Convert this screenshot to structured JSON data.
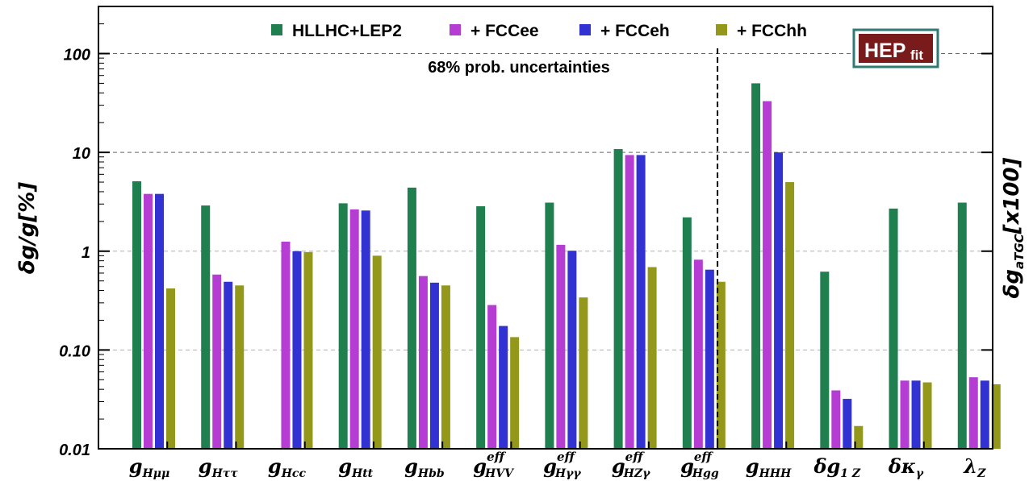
{
  "chart_data": {
    "type": "bar",
    "y_scale": "log",
    "ylim": [
      0.01,
      300
    ],
    "yticks": [
      "0.01",
      "0.10",
      "1",
      "10",
      "100"
    ],
    "ytick_values": [
      0.01,
      0.1,
      1,
      10,
      100
    ],
    "ylabel_left": "δg/g[%]",
    "ylabel_right": "δg",
    "ylabel_right_sub": "aTGC",
    "ylabel_right_suffix": "[x100]",
    "annotation": "68% prob. uncertainties",
    "grid": "horizontal dashed",
    "legend_position": "top",
    "logo": {
      "main": "HEP",
      "sub": "fit"
    },
    "categories": [
      {
        "main": "g",
        "sub": "Hμμ",
        "sup": ""
      },
      {
        "main": "g",
        "sub": "Hττ",
        "sup": ""
      },
      {
        "main": "g",
        "sub": "Hcc",
        "sup": ""
      },
      {
        "main": "g",
        "sub": "Htt",
        "sup": ""
      },
      {
        "main": "g",
        "sub": "Hbb",
        "sup": ""
      },
      {
        "main": "g",
        "sub": "HVV",
        "sup": "eff"
      },
      {
        "main": "g",
        "sub": "Hγγ",
        "sup": "eff"
      },
      {
        "main": "g",
        "sub": "HZγ",
        "sup": "eff"
      },
      {
        "main": "g",
        "sub": "Hgg",
        "sup": "eff"
      },
      {
        "main": "g",
        "sub": "HHH",
        "sup": ""
      },
      {
        "main": "δg",
        "sub": "1 Z",
        "sup": ""
      },
      {
        "main": "δκ",
        "sub": "γ",
        "sup": ""
      },
      {
        "main": "λ",
        "sub": "Z",
        "sup": ""
      }
    ],
    "separator_after_category": 9,
    "series": [
      {
        "name": "HLLHC+LEP2",
        "color": "#1f7f4f",
        "values": [
          5.1,
          2.9,
          null,
          3.05,
          4.4,
          2.85,
          3.1,
          10.8,
          2.2,
          50,
          0.62,
          2.7,
          3.1
        ]
      },
      {
        "name": "+ FCCee",
        "color": "#b63dd4",
        "values": [
          3.8,
          0.58,
          1.25,
          2.65,
          0.56,
          0.285,
          1.16,
          9.4,
          0.82,
          33,
          0.039,
          0.049,
          0.053
        ]
      },
      {
        "name": "+ FCCeh",
        "color": "#3232d2",
        "values": [
          3.8,
          0.49,
          1.0,
          2.58,
          0.48,
          0.175,
          1.01,
          9.4,
          0.65,
          10,
          0.032,
          0.049,
          0.049
        ]
      },
      {
        "name": "+ FCChh",
        "color": "#93981a",
        "values": [
          0.42,
          0.45,
          0.98,
          0.9,
          0.45,
          0.135,
          0.34,
          0.69,
          0.49,
          5.0,
          0.017,
          0.047,
          0.045
        ]
      }
    ]
  }
}
